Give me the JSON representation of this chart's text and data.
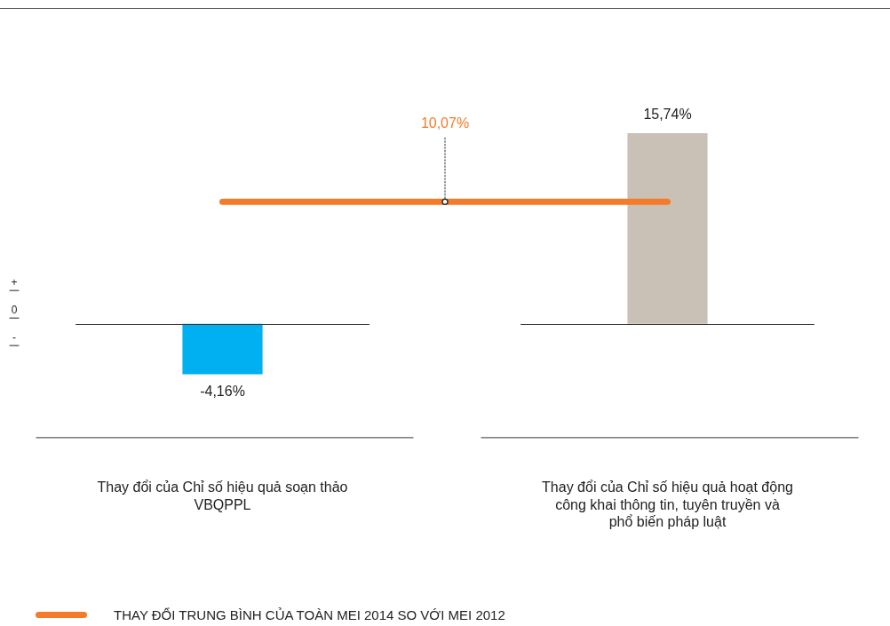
{
  "chart_data": {
    "type": "bar",
    "categories": [
      "Thay đổi của Chỉ số hiệu quả soạn thảo VBQPPL",
      "Thay đổi của Chỉ số hiệu quả hoạt động công khai thông tin, tuyên truyền và phổ biến pháp luật"
    ],
    "values": [
      -4.16,
      15.74
    ],
    "colors": [
      "#00b0f0",
      "#c9c1b6"
    ],
    "value_labels": [
      "-4,16%",
      "15,74%"
    ],
    "ref_lines": [
      {
        "axis": "y",
        "value": 10.07,
        "label": "THAY ĐỔI TRUNG BÌNH CỦA TOÀN MEI 2014 SO VỚI MEI 2012",
        "color": "#f47b2a"
      },
      {
        "axis": "y",
        "value": 0,
        "color": "#333333"
      }
    ],
    "annotations": [
      {
        "text": "10,07%",
        "y": 10.07
      },
      "+",
      "0",
      "-"
    ],
    "legend": "bottom left",
    "grid": false
  }
}
